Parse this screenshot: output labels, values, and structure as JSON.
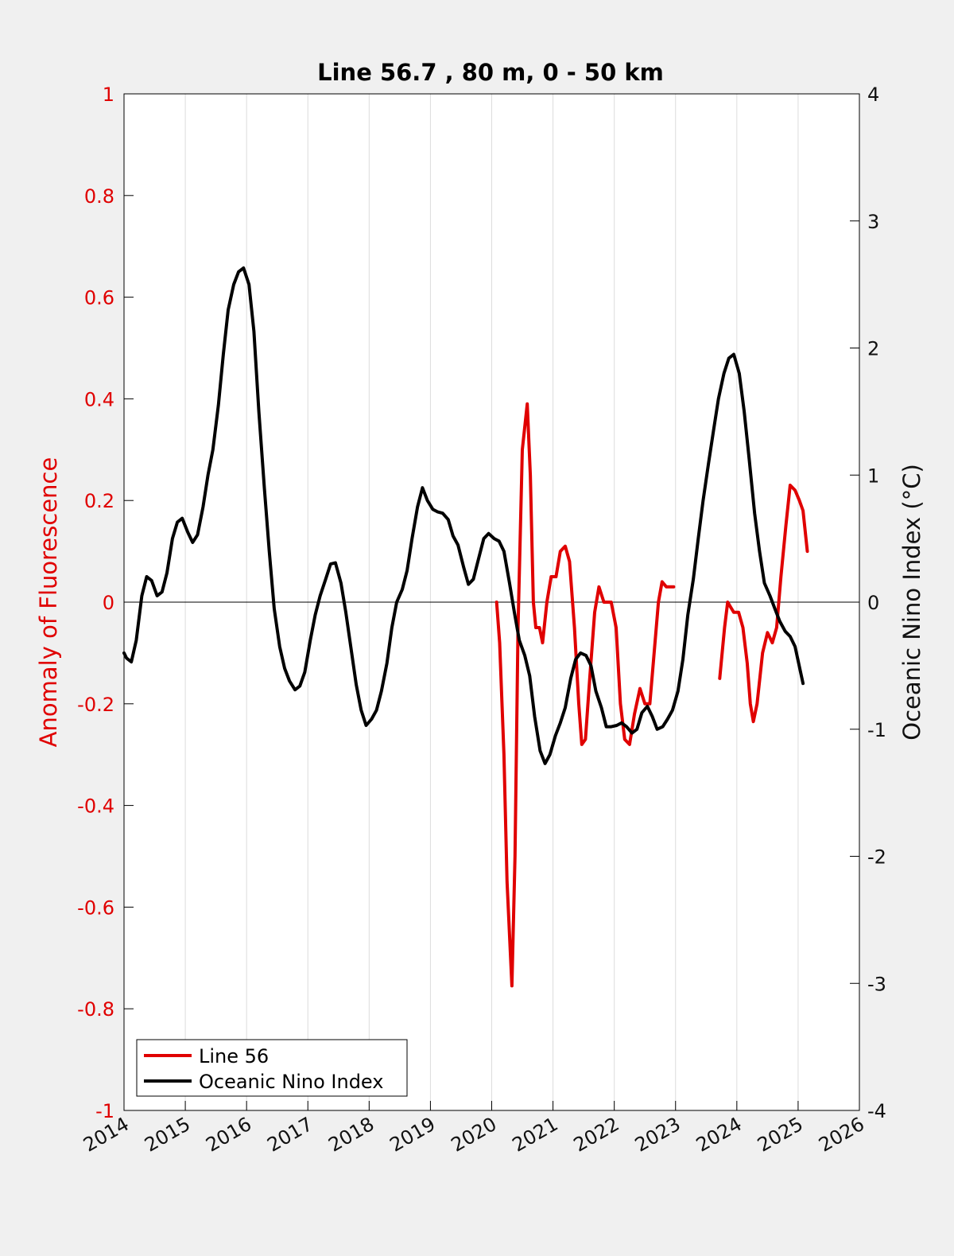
{
  "chart_data": {
    "type": "line",
    "title": "Line 56.7 , 80 m, 0 - 50 km",
    "xlim": [
      2014,
      2026
    ],
    "x_ticks": [
      "2014",
      "2015",
      "2016",
      "2017",
      "2018",
      "2019",
      "2020",
      "2021",
      "2022",
      "2023",
      "2024",
      "2025",
      "2026"
    ],
    "x_tick_values": [
      2014,
      2015,
      2016,
      2017,
      2018,
      2019,
      2020,
      2021,
      2022,
      2023,
      2024,
      2025,
      2026
    ],
    "grid": "vertical",
    "zero_line": true,
    "left_axis": {
      "label": "Anomaly of Fluorescence",
      "color": "#e00000",
      "ylim": [
        -1,
        1
      ],
      "ticks": [
        "1",
        "0.8",
        "0.6",
        "0.4",
        "0.2",
        "0",
        "-0.2",
        "-0.4",
        "-0.6",
        "-0.8",
        "-1"
      ],
      "tick_values": [
        1,
        0.8,
        0.6,
        0.4,
        0.2,
        0,
        -0.2,
        -0.4,
        -0.6,
        -0.8,
        -1
      ]
    },
    "right_axis": {
      "label": "Oceanic Nino Index (°C)",
      "color": "#111111",
      "ylim": [
        -4,
        4
      ],
      "ticks": [
        "4",
        "3",
        "2",
        "1",
        "0",
        "-1",
        "-2",
        "-3",
        "-4"
      ],
      "tick_values": [
        4,
        3,
        2,
        1,
        0,
        -1,
        -2,
        -3,
        -4
      ]
    },
    "legend": {
      "position": "bottom-left"
    },
    "series": [
      {
        "name": "Line 56",
        "axis": "left",
        "color": "#e00000",
        "segments": [
          [
            [
              2020.08,
              0.0
            ],
            [
              2020.13,
              -0.08
            ],
            [
              2020.2,
              -0.3
            ],
            [
              2020.25,
              -0.55
            ],
            [
              2020.33,
              -0.755
            ],
            [
              2020.38,
              -0.5
            ],
            [
              2020.43,
              -0.05
            ],
            [
              2020.5,
              0.3
            ],
            [
              2020.58,
              0.39
            ],
            [
              2020.63,
              0.25
            ],
            [
              2020.68,
              0.0
            ],
            [
              2020.72,
              -0.05
            ],
            [
              2020.78,
              -0.05
            ],
            [
              2020.83,
              -0.08
            ],
            [
              2020.9,
              0.0
            ],
            [
              2020.97,
              0.05
            ],
            [
              2021.05,
              0.05
            ],
            [
              2021.12,
              0.1
            ],
            [
              2021.2,
              0.11
            ],
            [
              2021.27,
              0.08
            ],
            [
              2021.35,
              -0.05
            ],
            [
              2021.42,
              -0.2
            ],
            [
              2021.47,
              -0.28
            ],
            [
              2021.53,
              -0.27
            ],
            [
              2021.6,
              -0.15
            ],
            [
              2021.68,
              -0.02
            ],
            [
              2021.75,
              0.03
            ],
            [
              2021.83,
              0.0
            ],
            [
              2021.9,
              0.0
            ],
            [
              2021.95,
              0.0
            ],
            [
              2022.03,
              -0.05
            ],
            [
              2022.1,
              -0.2
            ],
            [
              2022.17,
              -0.27
            ],
            [
              2022.25,
              -0.28
            ],
            [
              2022.33,
              -0.22
            ],
            [
              2022.42,
              -0.17
            ],
            [
              2022.5,
              -0.2
            ],
            [
              2022.58,
              -0.2
            ],
            [
              2022.65,
              -0.1
            ],
            [
              2022.72,
              0.0
            ],
            [
              2022.78,
              0.04
            ],
            [
              2022.85,
              0.03
            ],
            [
              2022.92,
              0.03
            ],
            [
              2022.97,
              0.03
            ]
          ],
          [
            [
              2023.72,
              -0.15
            ],
            [
              2023.8,
              -0.05
            ],
            [
              2023.85,
              0.0
            ],
            [
              2023.9,
              -0.01
            ],
            [
              2023.95,
              -0.02
            ],
            [
              2024.03,
              -0.02
            ],
            [
              2024.1,
              -0.05
            ],
            [
              2024.17,
              -0.12
            ],
            [
              2024.22,
              -0.2
            ],
            [
              2024.27,
              -0.235
            ],
            [
              2024.33,
              -0.2
            ],
            [
              2024.42,
              -0.1
            ],
            [
              2024.5,
              -0.06
            ],
            [
              2024.58,
              -0.08
            ],
            [
              2024.65,
              -0.05
            ],
            [
              2024.72,
              0.05
            ],
            [
              2024.8,
              0.15
            ],
            [
              2024.87,
              0.23
            ],
            [
              2024.95,
              0.22
            ],
            [
              2025.02,
              0.2
            ],
            [
              2025.08,
              0.18
            ],
            [
              2025.15,
              0.1
            ]
          ]
        ]
      },
      {
        "name": "Oceanic Nino Index",
        "axis": "right",
        "color": "#000000",
        "segments": [
          [
            [
              2014.0,
              -0.4
            ],
            [
              2014.04,
              -0.44
            ],
            [
              2014.12,
              -0.47
            ],
            [
              2014.2,
              -0.3
            ],
            [
              2014.29,
              0.05
            ],
            [
              2014.37,
              0.2
            ],
            [
              2014.45,
              0.17
            ],
            [
              2014.54,
              0.05
            ],
            [
              2014.62,
              0.08
            ],
            [
              2014.7,
              0.23
            ],
            [
              2014.79,
              0.5
            ],
            [
              2014.87,
              0.63
            ],
            [
              2014.95,
              0.66
            ],
            [
              2015.04,
              0.55
            ],
            [
              2015.12,
              0.47
            ],
            [
              2015.2,
              0.53
            ],
            [
              2015.29,
              0.75
            ],
            [
              2015.37,
              1.0
            ],
            [
              2015.45,
              1.2
            ],
            [
              2015.54,
              1.55
            ],
            [
              2015.62,
              1.95
            ],
            [
              2015.7,
              2.3
            ],
            [
              2015.79,
              2.5
            ],
            [
              2015.87,
              2.6
            ],
            [
              2015.95,
              2.63
            ],
            [
              2016.04,
              2.5
            ],
            [
              2016.12,
              2.13
            ],
            [
              2016.2,
              1.5
            ],
            [
              2016.29,
              0.9
            ],
            [
              2016.37,
              0.4
            ],
            [
              2016.45,
              -0.05
            ],
            [
              2016.54,
              -0.35
            ],
            [
              2016.62,
              -0.52
            ],
            [
              2016.7,
              -0.62
            ],
            [
              2016.79,
              -0.69
            ],
            [
              2016.87,
              -0.66
            ],
            [
              2016.95,
              -0.55
            ],
            [
              2017.04,
              -0.3
            ],
            [
              2017.12,
              -0.1
            ],
            [
              2017.2,
              0.05
            ],
            [
              2017.29,
              0.18
            ],
            [
              2017.37,
              0.3
            ],
            [
              2017.45,
              0.31
            ],
            [
              2017.54,
              0.15
            ],
            [
              2017.62,
              -0.08
            ],
            [
              2017.7,
              -0.35
            ],
            [
              2017.79,
              -0.65
            ],
            [
              2017.87,
              -0.85
            ],
            [
              2017.95,
              -0.97
            ],
            [
              2018.04,
              -0.92
            ],
            [
              2018.12,
              -0.85
            ],
            [
              2018.2,
              -0.7
            ],
            [
              2018.29,
              -0.48
            ],
            [
              2018.37,
              -0.2
            ],
            [
              2018.45,
              0.0
            ],
            [
              2018.54,
              0.1
            ],
            [
              2018.62,
              0.25
            ],
            [
              2018.7,
              0.5
            ],
            [
              2018.79,
              0.75
            ],
            [
              2018.87,
              0.9
            ],
            [
              2018.95,
              0.8
            ],
            [
              2019.04,
              0.73
            ],
            [
              2019.12,
              0.71
            ],
            [
              2019.2,
              0.7
            ],
            [
              2019.29,
              0.65
            ],
            [
              2019.37,
              0.52
            ],
            [
              2019.45,
              0.45
            ],
            [
              2019.54,
              0.28
            ],
            [
              2019.62,
              0.14
            ],
            [
              2019.7,
              0.18
            ],
            [
              2019.79,
              0.35
            ],
            [
              2019.87,
              0.5
            ],
            [
              2019.95,
              0.54
            ],
            [
              2020.04,
              0.5
            ],
            [
              2020.12,
              0.48
            ],
            [
              2020.2,
              0.4
            ],
            [
              2020.29,
              0.15
            ],
            [
              2020.37,
              -0.08
            ],
            [
              2020.45,
              -0.3
            ],
            [
              2020.54,
              -0.42
            ],
            [
              2020.62,
              -0.58
            ],
            [
              2020.7,
              -0.9
            ],
            [
              2020.79,
              -1.17
            ],
            [
              2020.87,
              -1.27
            ],
            [
              2020.95,
              -1.2
            ],
            [
              2021.04,
              -1.05
            ],
            [
              2021.12,
              -0.95
            ],
            [
              2021.2,
              -0.83
            ],
            [
              2021.29,
              -0.6
            ],
            [
              2021.37,
              -0.45
            ],
            [
              2021.45,
              -0.4
            ],
            [
              2021.54,
              -0.42
            ],
            [
              2021.62,
              -0.5
            ],
            [
              2021.7,
              -0.7
            ],
            [
              2021.79,
              -0.83
            ],
            [
              2021.87,
              -0.98
            ],
            [
              2021.95,
              -0.98
            ],
            [
              2022.04,
              -0.97
            ],
            [
              2022.12,
              -0.95
            ],
            [
              2022.2,
              -0.98
            ],
            [
              2022.29,
              -1.03
            ],
            [
              2022.37,
              -1.0
            ],
            [
              2022.45,
              -0.87
            ],
            [
              2022.54,
              -0.82
            ],
            [
              2022.62,
              -0.9
            ],
            [
              2022.7,
              -1.0
            ],
            [
              2022.79,
              -0.98
            ],
            [
              2022.87,
              -0.92
            ],
            [
              2022.95,
              -0.85
            ],
            [
              2023.04,
              -0.7
            ],
            [
              2023.12,
              -0.45
            ],
            [
              2023.2,
              -0.1
            ],
            [
              2023.29,
              0.18
            ],
            [
              2023.37,
              0.5
            ],
            [
              2023.45,
              0.8
            ],
            [
              2023.54,
              1.1
            ],
            [
              2023.62,
              1.35
            ],
            [
              2023.7,
              1.6
            ],
            [
              2023.79,
              1.8
            ],
            [
              2023.87,
              1.92
            ],
            [
              2023.95,
              1.95
            ],
            [
              2024.04,
              1.8
            ],
            [
              2024.12,
              1.5
            ],
            [
              2024.2,
              1.13
            ],
            [
              2024.29,
              0.7
            ],
            [
              2024.37,
              0.4
            ],
            [
              2024.45,
              0.15
            ],
            [
              2024.54,
              0.05
            ],
            [
              2024.62,
              -0.05
            ],
            [
              2024.7,
              -0.15
            ],
            [
              2024.79,
              -0.23
            ],
            [
              2024.87,
              -0.27
            ],
            [
              2024.95,
              -0.35
            ],
            [
              2025.04,
              -0.55
            ],
            [
              2025.08,
              -0.64
            ]
          ]
        ]
      }
    ]
  }
}
